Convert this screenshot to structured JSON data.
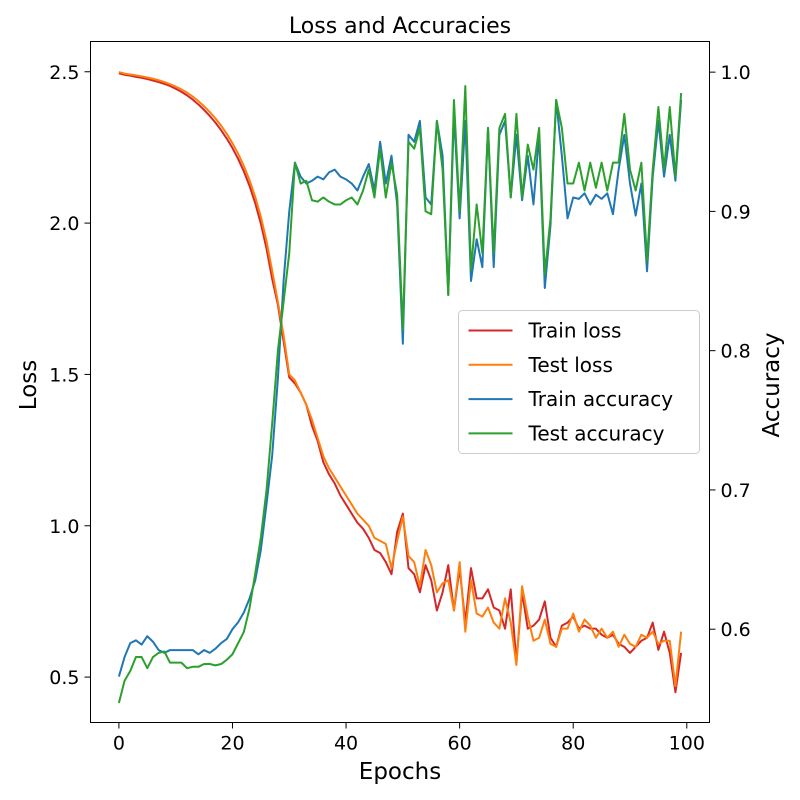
{
  "chart_data": {
    "type": "line",
    "title": "Loss and Accuracies",
    "xlabel": "Epochs",
    "ylabel": "Loss",
    "y2label": "Accuracy",
    "xlim": [
      -5,
      104
    ],
    "ylim": [
      0.35,
      2.6
    ],
    "y2lim": [
      0.533,
      1.022
    ],
    "x_ticks": [
      0,
      20,
      40,
      60,
      80,
      100
    ],
    "y_ticks": [
      0.5,
      1.0,
      1.5,
      2.0,
      2.5
    ],
    "y_tick_labels": [
      "0.5",
      "1.0",
      "1.5",
      "2.0",
      "2.5"
    ],
    "y2_ticks": [
      0.6,
      0.7,
      0.8,
      0.9,
      1.0
    ],
    "y2_tick_labels": [
      "0.6",
      "0.7",
      "0.8",
      "0.9",
      "1.0"
    ],
    "legend_position": "center-right",
    "grid": false,
    "x": [
      0,
      1,
      2,
      3,
      4,
      5,
      6,
      7,
      8,
      9,
      10,
      11,
      12,
      13,
      14,
      15,
      16,
      17,
      18,
      19,
      20,
      21,
      22,
      23,
      24,
      25,
      26,
      27,
      28,
      29,
      30,
      31,
      32,
      33,
      34,
      35,
      36,
      37,
      38,
      39,
      40,
      41,
      42,
      43,
      44,
      45,
      46,
      47,
      48,
      49,
      50,
      51,
      52,
      53,
      54,
      55,
      56,
      57,
      58,
      59,
      60,
      61,
      62,
      63,
      64,
      65,
      66,
      67,
      68,
      69,
      70,
      71,
      72,
      73,
      74,
      75,
      76,
      77,
      78,
      79,
      80,
      81,
      82,
      83,
      84,
      85,
      86,
      87,
      88,
      89,
      90,
      91,
      92,
      93,
      94,
      95,
      96,
      97,
      98,
      99
    ],
    "series": [
      {
        "name": "Train loss",
        "axis": "left",
        "color": "#d62728",
        "values": [
          2.495,
          2.49,
          2.487,
          2.483,
          2.48,
          2.476,
          2.471,
          2.466,
          2.46,
          2.453,
          2.444,
          2.434,
          2.422,
          2.408,
          2.392,
          2.374,
          2.354,
          2.332,
          2.307,
          2.279,
          2.248,
          2.212,
          2.171,
          2.123,
          2.066,
          1.998,
          1.915,
          1.815,
          1.73,
          1.61,
          1.49,
          1.47,
          1.44,
          1.4,
          1.33,
          1.28,
          1.21,
          1.17,
          1.14,
          1.1,
          1.07,
          1.04,
          1.01,
          0.99,
          0.96,
          0.92,
          0.91,
          0.88,
          0.84,
          0.98,
          1.04,
          0.86,
          0.84,
          0.78,
          0.87,
          0.82,
          0.72,
          0.78,
          0.87,
          0.72,
          0.86,
          0.68,
          0.86,
          0.76,
          0.76,
          0.79,
          0.73,
          0.72,
          0.66,
          0.79,
          0.55,
          0.78,
          0.66,
          0.67,
          0.69,
          0.75,
          0.63,
          0.6,
          0.67,
          0.68,
          0.7,
          0.66,
          0.67,
          0.66,
          0.66,
          0.64,
          0.63,
          0.64,
          0.61,
          0.6,
          0.58,
          0.6,
          0.62,
          0.63,
          0.68,
          0.59,
          0.65,
          0.58,
          0.45,
          0.58
        ]
      },
      {
        "name": "Test loss",
        "axis": "left",
        "color": "#ff7f0e",
        "values": [
          2.499,
          2.494,
          2.491,
          2.488,
          2.485,
          2.481,
          2.477,
          2.472,
          2.466,
          2.459,
          2.451,
          2.442,
          2.431,
          2.418,
          2.403,
          2.386,
          2.367,
          2.346,
          2.322,
          2.295,
          2.264,
          2.229,
          2.189,
          2.142,
          2.087,
          2.021,
          1.94,
          1.842,
          1.74,
          1.63,
          1.5,
          1.48,
          1.44,
          1.4,
          1.35,
          1.29,
          1.23,
          1.19,
          1.16,
          1.13,
          1.1,
          1.07,
          1.04,
          1.02,
          1.0,
          0.96,
          0.95,
          0.94,
          0.86,
          0.95,
          1.03,
          0.9,
          0.88,
          0.8,
          0.92,
          0.87,
          0.78,
          0.81,
          0.82,
          0.72,
          0.88,
          0.65,
          0.82,
          0.71,
          0.7,
          0.73,
          0.68,
          0.66,
          0.76,
          0.68,
          0.54,
          0.8,
          0.7,
          0.62,
          0.63,
          0.69,
          0.61,
          0.6,
          0.66,
          0.66,
          0.71,
          0.65,
          0.69,
          0.67,
          0.63,
          0.66,
          0.63,
          0.65,
          0.6,
          0.64,
          0.61,
          0.6,
          0.64,
          0.63,
          0.65,
          0.61,
          0.62,
          0.62,
          0.47,
          0.65
        ]
      },
      {
        "name": "Train accuracy",
        "axis": "right",
        "color": "#1f77b4",
        "values": [
          0.566,
          0.58,
          0.59,
          0.592,
          0.589,
          0.595,
          0.591,
          0.585,
          0.583,
          0.585,
          0.585,
          0.585,
          0.585,
          0.585,
          0.582,
          0.585,
          0.583,
          0.586,
          0.59,
          0.593,
          0.6,
          0.605,
          0.612,
          0.622,
          0.635,
          0.657,
          0.69,
          0.725,
          0.78,
          0.85,
          0.9,
          0.935,
          0.925,
          0.92,
          0.922,
          0.925,
          0.923,
          0.928,
          0.93,
          0.925,
          0.923,
          0.92,
          0.915,
          0.925,
          0.934,
          0.915,
          0.95,
          0.92,
          0.94,
          0.905,
          0.805,
          0.955,
          0.95,
          0.965,
          0.91,
          0.905,
          0.965,
          0.94,
          0.84,
          0.97,
          0.895,
          0.965,
          0.85,
          0.88,
          0.86,
          0.96,
          0.86,
          0.955,
          0.965,
          0.91,
          0.955,
          0.908,
          0.94,
          0.905,
          0.955,
          0.845,
          0.89,
          0.98,
          0.94,
          0.895,
          0.91,
          0.909,
          0.913,
          0.905,
          0.912,
          0.909,
          0.913,
          0.898,
          0.93,
          0.955,
          0.92,
          0.897,
          0.92,
          0.857,
          0.925,
          0.965,
          0.925,
          0.955,
          0.922,
          0.98
        ]
      },
      {
        "name": "Test accuracy",
        "axis": "right",
        "color": "#2ca02c",
        "values": [
          0.547,
          0.563,
          0.57,
          0.58,
          0.58,
          0.572,
          0.58,
          0.583,
          0.584,
          0.576,
          0.576,
          0.576,
          0.572,
          0.573,
          0.573,
          0.575,
          0.575,
          0.574,
          0.575,
          0.578,
          0.582,
          0.59,
          0.598,
          0.615,
          0.64,
          0.666,
          0.7,
          0.748,
          0.8,
          0.835,
          0.87,
          0.935,
          0.92,
          0.922,
          0.908,
          0.907,
          0.91,
          0.907,
          0.905,
          0.905,
          0.908,
          0.91,
          0.905,
          0.915,
          0.93,
          0.91,
          0.945,
          0.91,
          0.935,
          0.912,
          0.815,
          0.95,
          0.945,
          0.96,
          0.9,
          0.898,
          0.965,
          0.93,
          0.84,
          0.98,
          0.9,
          0.99,
          0.858,
          0.905,
          0.87,
          0.96,
          0.87,
          0.96,
          0.97,
          0.91,
          0.97,
          0.91,
          0.948,
          0.93,
          0.96,
          0.855,
          0.895,
          0.98,
          0.96,
          0.92,
          0.92,
          0.935,
          0.915,
          0.935,
          0.917,
          0.935,
          0.915,
          0.935,
          0.935,
          0.97,
          0.93,
          0.915,
          0.935,
          0.865,
          0.93,
          0.975,
          0.93,
          0.975,
          0.925,
          0.985
        ]
      }
    ]
  }
}
